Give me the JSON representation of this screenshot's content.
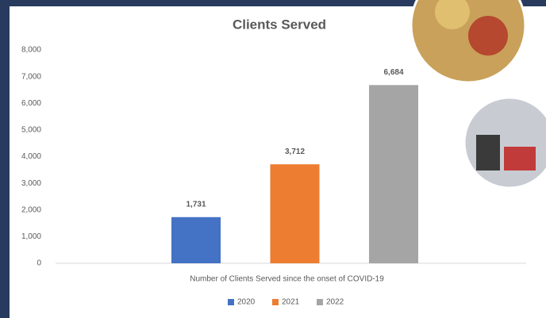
{
  "chart_data": {
    "type": "bar",
    "title": "Clients Served",
    "categories": [
      "Number of Clients Served since the onset of COVID-19"
    ],
    "series": [
      {
        "name": "2020",
        "color": "#4472c4",
        "values": [
          1731
        ],
        "value_labels": [
          "1,731"
        ]
      },
      {
        "name": "2021",
        "color": "#ed7d31",
        "values": [
          3712
        ],
        "value_labels": [
          "3,712"
        ]
      },
      {
        "name": "2022",
        "color": "#a5a5a5",
        "values": [
          6684
        ],
        "value_labels": [
          "6,684"
        ]
      }
    ],
    "ylim": [
      0,
      8000
    ],
    "yticks": [
      0,
      {
        "value": 1000,
        "label": "1,000"
      },
      {
        "value": 2000,
        "label": "2,000"
      },
      {
        "value": 3000,
        "label": "3,000"
      },
      {
        "value": 4000,
        "label": "4,000"
      },
      {
        "value": 5000,
        "label": "5,000"
      },
      {
        "value": 6000,
        "label": "6,000"
      },
      {
        "value": 7000,
        "label": "7,000"
      },
      {
        "value": 8000,
        "label": "8,000"
      }
    ],
    "grid": false,
    "legend": "bottom"
  }
}
